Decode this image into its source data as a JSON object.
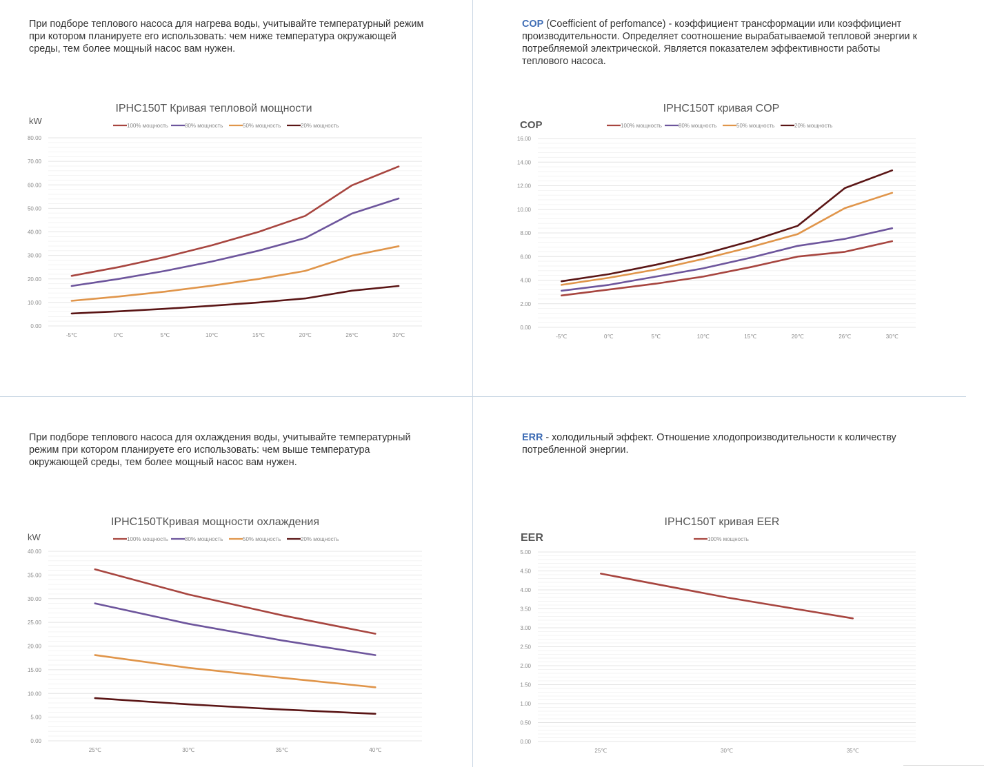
{
  "colors": {
    "s100": "#a7453f",
    "s80": "#6d559c",
    "s50": "#e0954a",
    "s20": "#5a1515",
    "grid": "#eeeeee",
    "tick": "#8a8a8a",
    "accent": "#3f6db5"
  },
  "panels": {
    "heating": {
      "desc": "При подборе теплового насоса для нагрева воды, учитывайте температурный режим при котором планируете его использовать: чем ниже температура окружающей среды, тем более мощный насос вам нужен."
    },
    "cop": {
      "term": "COP",
      "desc": " (Coefficient of perfomance) - коэффициент трансформации или коэффициент производительности. Определяет соотношение вырабатываемой тепловой энергии к потребляемой электрической. Является показателем эффективности работы теплового насоса."
    },
    "cooling": {
      "desc": "При подборе теплового насоса для охлаждения воды, учитывайте температурный режим при котором планируете его использовать: чем выше температура окружающей среды, тем более мощный насос вам нужен."
    },
    "eer": {
      "term": "ERR",
      "desc": " - холодильный эффект. Отношение хлодопроизводительности к количеству потребленной энергии."
    }
  },
  "chart_data": [
    {
      "id": "heating",
      "type": "line",
      "title": "IPHC150T  Кривая тепловой мощности",
      "ylabel": "kW",
      "ylim": [
        0,
        80
      ],
      "yticks": [
        "0.00",
        "10.00",
        "20.00",
        "30.00",
        "40.00",
        "50.00",
        "60.00",
        "70.00",
        "80.00"
      ],
      "categories": [
        "-5℃",
        "0℃",
        "5℃",
        "10℃",
        "15℃",
        "20℃",
        "26℃",
        "30℃"
      ],
      "legend_position": "top",
      "grid": true,
      "series": [
        {
          "name": "100% мощность",
          "color": "#a7453f",
          "values": [
            21.3,
            25.0,
            29.3,
            34.3,
            40.0,
            46.8,
            59.8,
            67.8
          ]
        },
        {
          "name": "80% мощность",
          "color": "#6d559c",
          "values": [
            17.0,
            20.0,
            23.4,
            27.4,
            32.0,
            37.4,
            47.8,
            54.2
          ]
        },
        {
          "name": "50% мощность",
          "color": "#e0954a",
          "values": [
            10.7,
            12.5,
            14.6,
            17.1,
            20.0,
            23.4,
            29.9,
            33.9
          ]
        },
        {
          "name": "20% мощность",
          "color": "#5a1515",
          "values": [
            5.3,
            6.2,
            7.3,
            8.6,
            10.0,
            11.7,
            15.0,
            17.0
          ]
        }
      ]
    },
    {
      "id": "cop",
      "type": "line",
      "title": "IPHC150T    кривая  COP",
      "ylabel": "COP",
      "ylim": [
        0,
        16
      ],
      "yticks": [
        "0.00",
        "2.00",
        "4.00",
        "6.00",
        "8.00",
        "10.00",
        "12.00",
        "14.00",
        "16.00"
      ],
      "categories": [
        "-5℃",
        "0℃",
        "5℃",
        "10℃",
        "15℃",
        "20℃",
        "26℃",
        "30℃"
      ],
      "legend_position": "top",
      "grid": true,
      "series": [
        {
          "name": "100% мощность",
          "color": "#a7453f",
          "values": [
            2.7,
            3.2,
            3.7,
            4.3,
            5.1,
            6.0,
            6.4,
            7.3
          ]
        },
        {
          "name": "80% мощность",
          "color": "#6d559c",
          "values": [
            3.1,
            3.6,
            4.3,
            5.0,
            5.9,
            6.9,
            7.5,
            8.4
          ]
        },
        {
          "name": "50% мощность",
          "color": "#e0954a",
          "values": [
            3.6,
            4.2,
            4.9,
            5.8,
            6.8,
            7.9,
            10.1,
            11.4
          ]
        },
        {
          "name": "20% мощность",
          "color": "#5a1515",
          "values": [
            3.9,
            4.5,
            5.3,
            6.2,
            7.3,
            8.6,
            11.8,
            13.3
          ]
        }
      ]
    },
    {
      "id": "cooling",
      "type": "line",
      "title": "IPHC150TКривая мощности охлаждения",
      "ylabel": "kW",
      "ylim": [
        0,
        40
      ],
      "yticks": [
        "0.00",
        "5.00",
        "10.00",
        "15.00",
        "20.00",
        "25.00",
        "30.00",
        "35.00",
        "40.00"
      ],
      "categories": [
        "25℃",
        "30℃",
        "35℃",
        "40℃"
      ],
      "legend_position": "top",
      "grid": true,
      "series": [
        {
          "name": "100% мощность",
          "color": "#a7453f",
          "values": [
            36.2,
            30.9,
            26.5,
            22.6
          ]
        },
        {
          "name": "80% мощность",
          "color": "#6d559c",
          "values": [
            29.0,
            24.7,
            21.2,
            18.1
          ]
        },
        {
          "name": "50% мощность",
          "color": "#e0954a",
          "values": [
            18.1,
            15.4,
            13.3,
            11.3
          ]
        },
        {
          "name": "20% мощность",
          "color": "#5a1515",
          "values": [
            9.0,
            7.7,
            6.6,
            5.7
          ]
        }
      ]
    },
    {
      "id": "eer",
      "type": "line",
      "title": "IPHC150T    кривая  EER",
      "ylabel": "EER",
      "ylim": [
        0,
        5
      ],
      "yticks": [
        "0.00",
        "0.50",
        "1.00",
        "1.50",
        "2.00",
        "2.50",
        "3.00",
        "3.50",
        "4.00",
        "4.50",
        "5.00"
      ],
      "categories": [
        "25℃",
        "30℃",
        "35℃"
      ],
      "legend_position": "top",
      "grid": true,
      "series": [
        {
          "name": "100% мощность",
          "color": "#a7453f",
          "values": [
            4.43,
            3.8,
            3.25
          ]
        }
      ]
    }
  ]
}
